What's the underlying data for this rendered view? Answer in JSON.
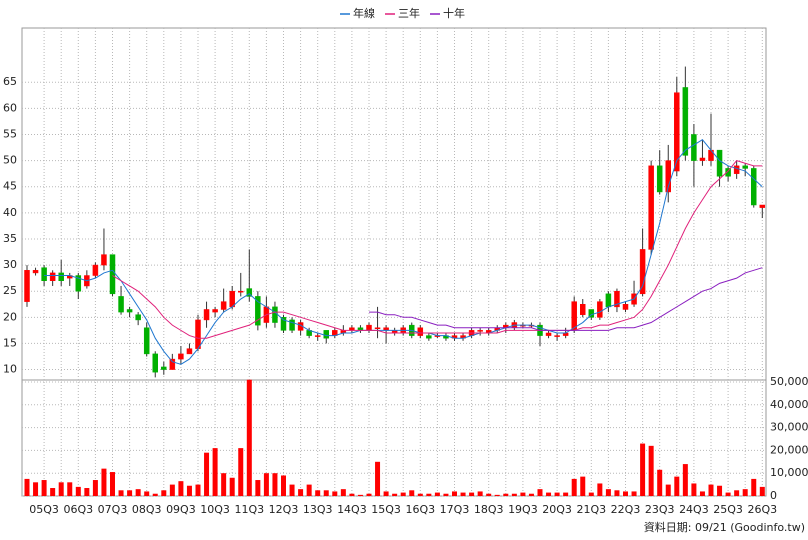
{
  "chart_data": [
    {
      "type": "candlestick",
      "legend": "top",
      "up_color": "#ff0000",
      "down_color": "#00b000",
      "wick_color": "#333333",
      "ylim": [
        8,
        75
      ],
      "yticks": [
        10,
        15,
        20,
        25,
        30,
        35,
        40,
        45,
        50,
        55,
        60,
        65
      ],
      "grid": true,
      "open": [
        23,
        28.5,
        29.5,
        27,
        28.5,
        27.5,
        28,
        26,
        28,
        30,
        32,
        24,
        21.5,
        20.5,
        18,
        13,
        10.5,
        10,
        12,
        13,
        14,
        19.5,
        21,
        21.5,
        22,
        25,
        25.5,
        24,
        19,
        22,
        20,
        19.5,
        17.5,
        17.5,
        16.5,
        17.5,
        16.5,
        17,
        17.5,
        18,
        17.5,
        18,
        17.5,
        17,
        17,
        18.5,
        16.5,
        16.5,
        16.5,
        16.5,
        16,
        16,
        16.5,
        17.5,
        17,
        17.5,
        18,
        18,
        18.5,
        18.5,
        18.5,
        16.5,
        16.5,
        16.5,
        17.5,
        20.5,
        21.5,
        20,
        24.5,
        22,
        21.5,
        22.5,
        24.5,
        33,
        49,
        44,
        48,
        64,
        55,
        50,
        50,
        52,
        48.5,
        47.5,
        49,
        48.5,
        41
      ],
      "high": [
        30,
        29.5,
        30,
        29,
        31,
        28.5,
        28.5,
        29,
        30.5,
        37,
        32,
        26,
        22,
        21,
        19,
        13.5,
        11.5,
        13,
        14.5,
        15,
        20.5,
        23,
        22,
        25.5,
        26,
        28.5,
        33,
        25,
        24,
        23,
        20.5,
        20,
        19.5,
        18,
        17,
        17.5,
        18,
        18.5,
        18.5,
        18.5,
        19,
        22,
        18.5,
        18,
        18.5,
        19,
        18.5,
        17,
        17,
        17,
        17,
        17,
        18,
        18,
        18,
        18.5,
        19,
        19.5,
        19,
        19,
        19,
        17.5,
        17,
        18,
        24,
        23.5,
        21.5,
        23.5,
        25,
        25.5,
        23,
        27,
        37,
        50,
        52,
        53,
        66,
        68,
        57,
        54,
        59,
        52,
        49,
        50,
        49.5,
        49,
        41.5
      ],
      "low": [
        22,
        28,
        26,
        26,
        26,
        26,
        23.5,
        25.5,
        27.5,
        29,
        24,
        20.5,
        20,
        18.5,
        12.5,
        8.5,
        9,
        10,
        11,
        13,
        13.5,
        18,
        20,
        21,
        21.5,
        24,
        23,
        17.5,
        18,
        18,
        17,
        17,
        16.5,
        16,
        15.5,
        15,
        16,
        16.5,
        17,
        17,
        17,
        16,
        15,
        16.5,
        16.5,
        16,
        16,
        15.5,
        16,
        15.5,
        15.5,
        15.5,
        16,
        16.5,
        16.5,
        17,
        17,
        17.5,
        18,
        18,
        14.5,
        16,
        15.5,
        16,
        17,
        20,
        19.5,
        19.5,
        21,
        21,
        21,
        22,
        24,
        32,
        43.5,
        42,
        47,
        50,
        45,
        49,
        49,
        45,
        46,
        46.5,
        47,
        41,
        39
      ],
      "close": [
        29,
        29,
        27,
        28.5,
        27,
        28,
        25,
        28,
        30,
        32,
        24.5,
        21,
        21,
        19.5,
        13,
        9.5,
        10,
        12,
        13,
        14,
        19.5,
        21.5,
        21.5,
        23,
        25,
        25,
        24,
        18.5,
        22,
        19,
        17.5,
        17.5,
        19,
        16.5,
        16.5,
        16,
        17.5,
        17.5,
        18,
        17.5,
        18.5,
        18,
        18,
        17.5,
        18,
        16.5,
        18,
        16,
        16.5,
        16,
        16.5,
        16.5,
        17.5,
        17.5,
        17.5,
        18,
        18.5,
        19,
        18.5,
        18.5,
        16.5,
        17,
        16.5,
        17,
        23,
        22.5,
        20,
        23,
        22,
        25,
        22.5,
        24.5,
        33,
        49,
        44,
        50,
        63,
        51,
        50,
        50.5,
        52,
        47,
        47,
        49,
        48.5,
        41.5,
        41.5
      ],
      "series": [
        {
          "name": "年線",
          "color": "#1f77d0",
          "values": [
            null,
            null,
            28,
            28,
            28,
            28,
            27.5,
            27,
            27.5,
            28.5,
            29,
            27,
            24.5,
            22,
            19.5,
            16,
            13.5,
            11.5,
            11,
            12,
            14,
            16.5,
            19,
            21,
            22,
            23.5,
            24.5,
            23,
            22,
            21,
            19.5,
            19,
            18.5,
            17.5,
            17,
            16.5,
            16.5,
            17,
            17,
            17.5,
            17.5,
            17.5,
            17.5,
            17.5,
            17.5,
            17.5,
            17,
            17,
            16.5,
            16.5,
            16,
            16,
            16.5,
            17,
            17,
            17.5,
            18,
            18.5,
            18.5,
            18.5,
            18,
            17.5,
            17,
            17,
            18,
            19,
            20.5,
            21,
            22,
            22.5,
            23,
            23.5,
            26,
            32,
            38,
            45,
            50,
            52,
            53,
            54,
            52,
            50,
            49,
            48.5,
            48,
            46.5,
            45
          ]
        },
        {
          "name": "三年",
          "color": "#e0207a",
          "values": [
            null,
            null,
            null,
            null,
            null,
            null,
            null,
            null,
            null,
            null,
            28,
            27,
            26,
            25,
            23.5,
            22,
            20,
            18.5,
            17.5,
            16.5,
            16,
            16,
            16.5,
            17,
            17.5,
            18,
            18.5,
            19.5,
            20.5,
            21,
            21,
            20.5,
            20,
            19.5,
            19,
            18.5,
            18,
            17.5,
            17.5,
            17.5,
            17.5,
            17.5,
            17,
            17,
            17,
            17,
            17,
            17,
            17,
            17,
            17,
            17,
            17,
            17,
            17,
            17,
            17.5,
            17.5,
            17.5,
            17.5,
            17.5,
            17.5,
            17.5,
            17.5,
            17.5,
            18,
            18,
            18.5,
            18.5,
            19,
            19.5,
            20,
            21.5,
            24,
            27,
            30,
            33.5,
            37,
            40,
            42.5,
            45,
            46.5,
            48,
            50,
            49.5,
            49,
            49
          ]
        },
        {
          "name": "十年",
          "color": "#8a1fc0",
          "values": [
            null,
            null,
            null,
            null,
            null,
            null,
            null,
            null,
            null,
            null,
            null,
            null,
            null,
            null,
            null,
            null,
            null,
            null,
            null,
            null,
            null,
            null,
            null,
            null,
            null,
            null,
            null,
            null,
            null,
            null,
            null,
            null,
            null,
            null,
            null,
            null,
            null,
            null,
            null,
            null,
            21,
            21,
            20.5,
            20.5,
            20,
            20,
            19.5,
            19,
            18.5,
            18.5,
            18,
            18,
            18,
            18,
            18,
            18,
            18,
            18,
            18,
            18,
            17.5,
            17.5,
            17.5,
            17.5,
            17.5,
            17.5,
            17.5,
            17.5,
            17.5,
            18,
            18,
            18,
            18.5,
            19,
            20,
            21,
            22,
            23,
            24,
            25,
            25.5,
            26.5,
            27,
            27.5,
            28.5,
            29,
            29.5
          ]
        }
      ]
    },
    {
      "type": "bar",
      "color": "#ff0000",
      "categories": [
        null,
        null,
        "05Q3",
        null,
        null,
        null,
        "06Q3",
        null,
        null,
        null,
        "07Q3",
        null,
        null,
        null,
        "08Q3",
        null,
        null,
        null,
        "09Q3",
        null,
        null,
        null,
        "10Q3",
        null,
        null,
        null,
        "11Q3",
        null,
        null,
        null,
        "12Q3",
        null,
        null,
        null,
        "13Q3",
        null,
        null,
        null,
        "14Q3",
        null,
        null,
        null,
        "15Q3",
        null,
        null,
        null,
        "16Q3",
        null,
        null,
        null,
        "17Q3",
        null,
        null,
        null,
        "18Q3",
        null,
        null,
        null,
        "19Q3",
        null,
        null,
        null,
        "20Q3",
        null,
        null,
        null,
        "21Q3",
        null,
        null,
        null,
        "22Q3",
        null,
        null,
        null,
        "23Q3",
        null,
        null,
        null,
        "24Q3",
        null,
        null,
        null,
        "25Q3",
        null,
        null,
        null,
        "26Q3"
      ],
      "values": [
        7500,
        6000,
        7000,
        3500,
        6000,
        6000,
        4000,
        3500,
        7000,
        12000,
        10500,
        2500,
        2500,
        3000,
        2000,
        1000,
        2500,
        5000,
        6500,
        4500,
        5000,
        19000,
        21000,
        10000,
        8000,
        21000,
        51000,
        7000,
        10000,
        10000,
        9000,
        5000,
        3000,
        5000,
        2500,
        2500,
        2000,
        3000,
        1000,
        500,
        1000,
        15000,
        2000,
        1000,
        1500,
        2500,
        1000,
        1000,
        1500,
        1000,
        2000,
        1500,
        1500,
        2000,
        1000,
        500,
        1000,
        1000,
        1500,
        1000,
        3000,
        1500,
        1500,
        1500,
        7500,
        8500,
        1500,
        5500,
        3000,
        2500,
        2000,
        2000,
        23000,
        22000,
        11500,
        5000,
        8500,
        14000,
        5500,
        2000,
        5000,
        4500,
        1500,
        2500,
        3000,
        7500,
        4000
      ],
      "ylim": [
        0,
        50000
      ],
      "yticks": [
        0,
        {
          "value": 10000,
          "label": "10,000"
        },
        {
          "value": 20000,
          "label": "20,000"
        },
        {
          "value": 30000,
          "label": "30,000"
        },
        {
          "value": 40000,
          "label": "40,000"
        },
        {
          "value": 50000,
          "label": "50,000"
        }
      ],
      "grid": true
    }
  ],
  "footer": "資料日期: 09/21 (Goodinfo.tw)"
}
